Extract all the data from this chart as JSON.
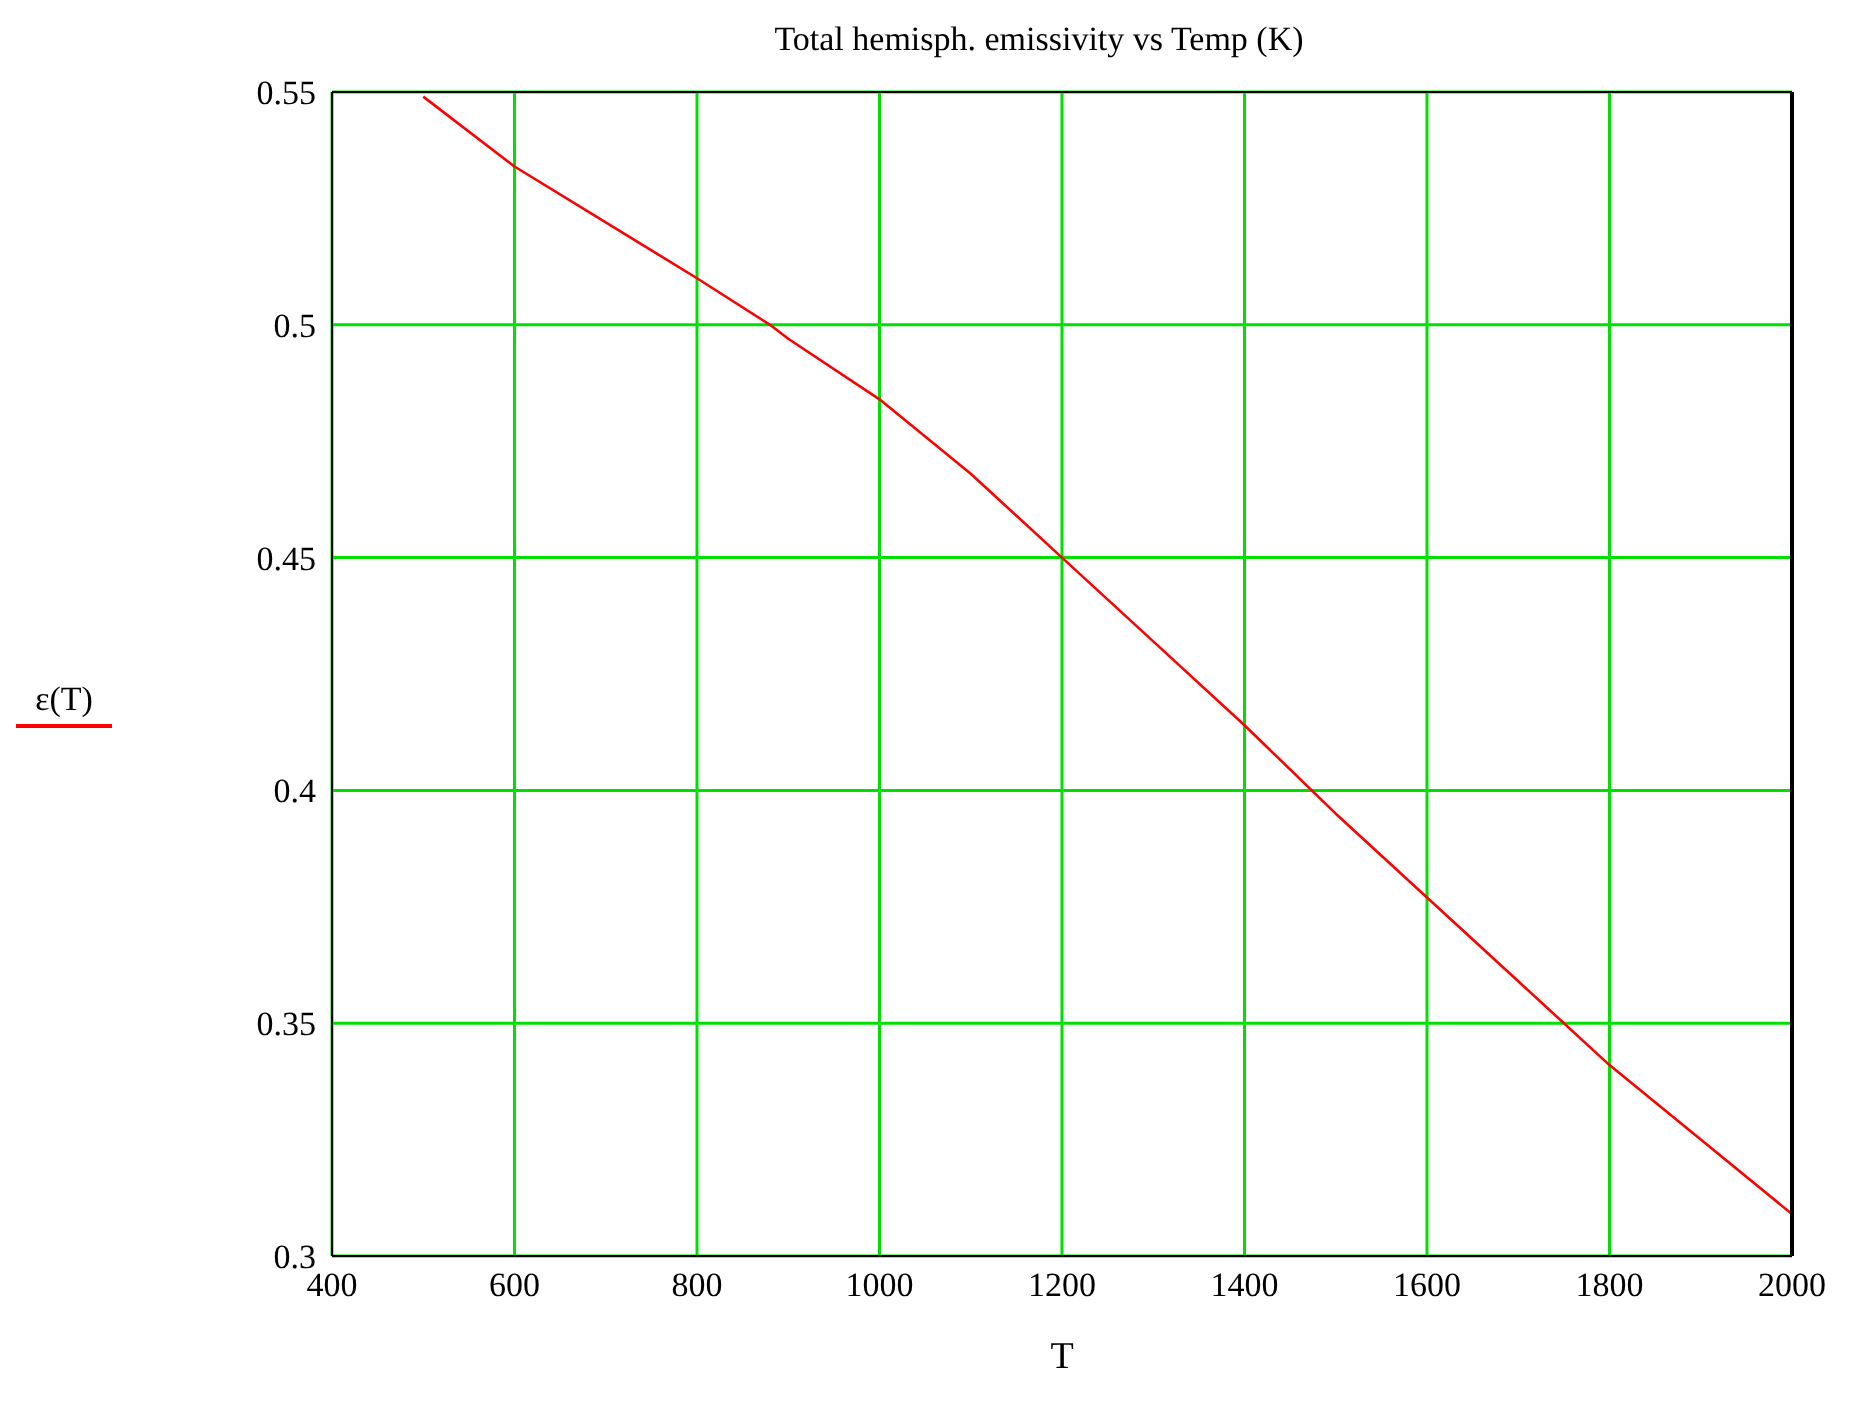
{
  "chart_data": {
    "type": "line",
    "title": "Total hemisph. emissivity vs Temp (K)",
    "xlabel": "T",
    "x": [
      500,
      520,
      600,
      700,
      800,
      880,
      900,
      1000,
      1100,
      1200,
      1300,
      1400,
      1500,
      1600,
      1700,
      1800,
      1900,
      2000
    ],
    "series": [
      {
        "name": "ε(T)",
        "color": "#ff0000",
        "values": [
          0.549,
          0.546,
          0.534,
          0.522,
          0.51,
          0.5,
          0.497,
          0.484,
          0.468,
          0.45,
          0.432,
          0.414,
          0.395,
          0.377,
          0.359,
          0.341,
          0.325,
          0.309
        ]
      }
    ],
    "xlim": [
      400,
      2000
    ],
    "xticks": [
      400,
      600,
      800,
      1000,
      1200,
      1400,
      1600,
      1800,
      2000
    ],
    "ylim": [
      0.3,
      0.55
    ],
    "yticks": [
      0.3,
      0.35,
      0.4,
      0.45,
      0.5,
      0.55
    ],
    "grid": true,
    "legend": "left",
    "marker": "none",
    "line_style": "solid"
  }
}
